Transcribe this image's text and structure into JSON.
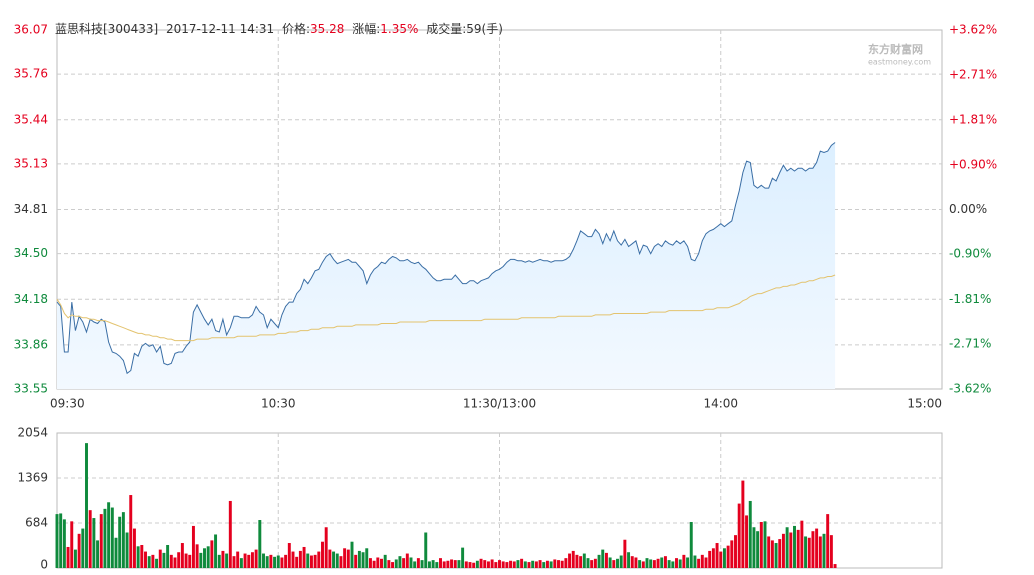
{
  "header": {
    "name": "蓝思科技[300433]",
    "datetime": "2017-12-11 14:31",
    "price_label": "价格:",
    "price": "35.28",
    "change_label": "涨幅:",
    "change": "1.35%",
    "volume_label": "成交量:",
    "volume": "59(手)"
  },
  "watermark": {
    "brand": "东方财富网",
    "site": "eastmoney.com"
  },
  "chart_data": [
    {
      "type": "line",
      "xlim": [
        0,
        240
      ],
      "xticks": [
        {
          "value": 0,
          "label": "09:30"
        },
        {
          "value": 60,
          "label": "10:30"
        },
        {
          "value": 120,
          "label": "11:30/13:00"
        },
        {
          "value": 180,
          "label": "14:00"
        },
        {
          "value": 240,
          "label": "15:00"
        }
      ],
      "ylim": [
        33.55,
        36.07
      ],
      "yticks": [
        33.55,
        33.86,
        34.18,
        {
          "value": 34.5,
          "label": "34.50"
        },
        34.81,
        35.13,
        35.44,
        35.76,
        36.07
      ],
      "y2lim": [
        -3.62,
        3.62
      ],
      "y2ticks": [
        {
          "value": -3.62,
          "label": "-3.62%"
        },
        {
          "value": -2.71,
          "label": "-2.71%"
        },
        {
          "value": -1.81,
          "label": "-1.81%"
        },
        {
          "value": -0.9,
          "label": "-0.90%"
        },
        {
          "value": 0,
          "label": "0.00%"
        },
        {
          "value": 0.9,
          "label": "+0.90%"
        },
        {
          "value": 1.81,
          "label": "+1.81%"
        },
        {
          "value": 2.71,
          "label": "+2.71%"
        },
        {
          "value": 3.62,
          "label": "+3.62%"
        }
      ],
      "grid": true,
      "series": [
        {
          "name": "价格",
          "color": "#3a6ea5",
          "values": [
            34.16,
            34.13,
            33.81,
            33.81,
            34.16,
            33.96,
            34.06,
            34.02,
            33.95,
            34.04,
            34.02,
            34.01,
            34.04,
            34.02,
            33.88,
            33.81,
            33.8,
            33.78,
            33.75,
            33.66,
            33.68,
            33.8,
            33.78,
            33.85,
            33.87,
            33.85,
            33.86,
            33.81,
            33.85,
            33.73,
            33.72,
            33.73,
            33.8,
            33.81,
            33.81,
            33.85,
            33.88,
            34.09,
            34.14,
            34.09,
            34.04,
            34.0,
            34.04,
            33.96,
            33.95,
            34.04,
            33.93,
            33.98,
            34.06,
            34.06,
            34.05,
            34.05,
            34.05,
            34.07,
            34.13,
            34.09,
            34.07,
            33.98,
            34.04,
            34.01,
            33.98,
            34.07,
            34.13,
            34.16,
            34.16,
            34.22,
            34.25,
            34.32,
            34.29,
            34.33,
            34.38,
            34.39,
            34.44,
            34.48,
            34.5,
            34.46,
            34.43,
            34.44,
            34.45,
            34.46,
            34.44,
            34.44,
            34.41,
            34.38,
            34.29,
            34.35,
            34.39,
            34.41,
            34.44,
            34.43,
            34.46,
            34.48,
            34.47,
            34.45,
            34.45,
            34.46,
            34.44,
            34.43,
            34.44,
            34.41,
            34.39,
            34.36,
            34.33,
            34.31,
            34.31,
            34.32,
            34.32,
            34.32,
            34.35,
            34.32,
            34.29,
            34.29,
            34.31,
            34.31,
            34.29,
            34.31,
            34.32,
            34.33,
            34.36,
            34.38,
            34.39,
            34.41,
            34.44,
            34.46,
            34.46,
            34.45,
            34.45,
            34.44,
            34.45,
            34.44,
            34.45,
            34.46,
            34.45,
            34.45,
            34.44,
            34.45,
            34.45,
            34.45,
            34.46,
            34.48,
            34.53,
            34.59,
            34.66,
            34.64,
            34.62,
            34.62,
            34.67,
            34.64,
            34.57,
            34.64,
            34.59,
            34.66,
            34.59,
            34.56,
            34.6,
            34.55,
            34.57,
            34.59,
            34.5,
            34.56,
            34.55,
            34.5,
            34.55,
            34.57,
            34.55,
            34.59,
            34.57,
            34.56,
            34.59,
            34.57,
            34.59,
            34.55,
            34.46,
            34.45,
            34.5,
            34.59,
            34.64,
            34.66,
            34.67,
            34.69,
            34.71,
            34.69,
            34.71,
            34.73,
            34.84,
            34.94,
            35.07,
            35.15,
            35.14,
            34.98,
            34.96,
            34.98,
            34.96,
            34.96,
            35.03,
            35.01,
            35.07,
            35.12,
            35.08,
            35.1,
            35.08,
            35.1,
            35.1,
            35.08,
            35.1,
            35.1,
            35.14,
            35.22,
            35.21,
            35.22,
            35.26,
            35.28
          ]
        },
        {
          "name": "均价",
          "color": "#e3c36f",
          "values": [
            34.18,
            34.14,
            34.08,
            34.05,
            34.07,
            34.06,
            34.06,
            34.05,
            34.05,
            34.04,
            34.04,
            34.03,
            34.03,
            34.03,
            34.02,
            34.01,
            34.0,
            33.99,
            33.98,
            33.97,
            33.96,
            33.95,
            33.94,
            33.94,
            33.93,
            33.93,
            33.92,
            33.92,
            33.91,
            33.91,
            33.9,
            33.9,
            33.89,
            33.89,
            33.89,
            33.89,
            33.89,
            33.89,
            33.9,
            33.9,
            33.9,
            33.9,
            33.91,
            33.91,
            33.91,
            33.91,
            33.91,
            33.91,
            33.91,
            33.92,
            33.92,
            33.92,
            33.92,
            33.92,
            33.92,
            33.93,
            33.93,
            33.93,
            33.93,
            33.93,
            33.94,
            33.94,
            33.94,
            33.95,
            33.95,
            33.95,
            33.96,
            33.96,
            33.96,
            33.97,
            33.97,
            33.97,
            33.98,
            33.98,
            33.98,
            33.98,
            33.99,
            33.99,
            33.99,
            33.99,
            33.99,
            34.0,
            34.0,
            34.0,
            34.0,
            34.0,
            34.0,
            34.0,
            34.01,
            34.01,
            34.01,
            34.01,
            34.01,
            34.02,
            34.02,
            34.02,
            34.02,
            34.02,
            34.02,
            34.02,
            34.02,
            34.03,
            34.03,
            34.03,
            34.03,
            34.03,
            34.03,
            34.03,
            34.03,
            34.03,
            34.03,
            34.03,
            34.03,
            34.03,
            34.03,
            34.03,
            34.04,
            34.04,
            34.04,
            34.04,
            34.04,
            34.04,
            34.04,
            34.04,
            34.04,
            34.04,
            34.05,
            34.05,
            34.05,
            34.05,
            34.05,
            34.05,
            34.05,
            34.05,
            34.05,
            34.05,
            34.06,
            34.06,
            34.06,
            34.06,
            34.06,
            34.06,
            34.06,
            34.06,
            34.06,
            34.06,
            34.07,
            34.07,
            34.07,
            34.07,
            34.07,
            34.08,
            34.08,
            34.08,
            34.08,
            34.08,
            34.08,
            34.08,
            34.08,
            34.08,
            34.08,
            34.09,
            34.09,
            34.09,
            34.09,
            34.09,
            34.1,
            34.1,
            34.1,
            34.1,
            34.1,
            34.1,
            34.1,
            34.1,
            34.1,
            34.1,
            34.11,
            34.11,
            34.11,
            34.12,
            34.12,
            34.12,
            34.12,
            34.13,
            34.14,
            34.15,
            34.17,
            34.18,
            34.2,
            34.21,
            34.22,
            34.22,
            34.23,
            34.24,
            34.25,
            34.26,
            34.26,
            34.27,
            34.27,
            34.28,
            34.28,
            34.29,
            34.3,
            34.3,
            34.31,
            34.31,
            34.32,
            34.33,
            34.33,
            34.34,
            34.34,
            34.35
          ]
        }
      ]
    },
    {
      "type": "bar",
      "ylim": [
        0,
        2054
      ],
      "yticks": [
        0,
        684,
        1369,
        2054
      ],
      "grid": true,
      "up_color": "#e4001e",
      "down_color": "#0f8a3c",
      "values": [
        820,
        830,
        740,
        320,
        710,
        280,
        520,
        600,
        1900,
        880,
        760,
        420,
        820,
        900,
        1000,
        920,
        460,
        780,
        850,
        540,
        1110,
        600,
        330,
        350,
        250,
        180,
        200,
        140,
        280,
        230,
        350,
        200,
        160,
        240,
        380,
        220,
        200,
        640,
        360,
        230,
        300,
        330,
        420,
        510,
        200,
        260,
        220,
        1020,
        180,
        250,
        150,
        220,
        200,
        240,
        280,
        730,
        220,
        180,
        200,
        170,
        190,
        160,
        200,
        380,
        250,
        170,
        260,
        320,
        220,
        190,
        200,
        250,
        400,
        620,
        280,
        250,
        220,
        180,
        300,
        280,
        400,
        200,
        260,
        240,
        300,
        150,
        110,
        160,
        140,
        200,
        120,
        90,
        130,
        180,
        150,
        220,
        160,
        100,
        150,
        120,
        540,
        100,
        120,
        90,
        150,
        100,
        110,
        130,
        120,
        120,
        310,
        100,
        90,
        80,
        110,
        140,
        120,
        100,
        130,
        90,
        120,
        100,
        90,
        110,
        100,
        120,
        140,
        100,
        90,
        110,
        100,
        120,
        90,
        110,
        100,
        130,
        120,
        110,
        150,
        220,
        260,
        200,
        180,
        220,
        150,
        120,
        140,
        200,
        280,
        230,
        160,
        120,
        140,
        190,
        430,
        240,
        180,
        160,
        120,
        100,
        150,
        130,
        120,
        140,
        160,
        180,
        120,
        100,
        150,
        130,
        200,
        160,
        700,
        190,
        140,
        200,
        160,
        260,
        300,
        380,
        250,
        300,
        340,
        420,
        500,
        980,
        1330,
        800,
        1020,
        620,
        560,
        700,
        710,
        480,
        420,
        380,
        440,
        520,
        620,
        540,
        640,
        580,
        720,
        480,
        460,
        560,
        600,
        480,
        520,
        820,
        500,
        60
      ]
    }
  ]
}
